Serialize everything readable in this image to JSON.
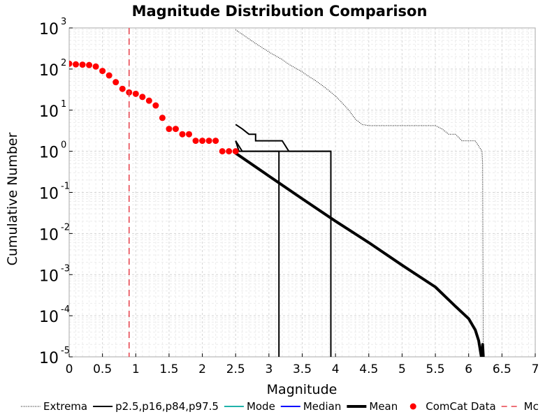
{
  "chart_data": {
    "type": "line",
    "title": "Magnitude Distribution Comparison",
    "xlabel": "Magnitude",
    "ylabel": "Cumulative Number",
    "xlim": [
      0,
      7
    ],
    "ylim_log10": [
      -5,
      3
    ],
    "yscale": "log",
    "grid": true,
    "legend_placement": "bottom",
    "x_ticks": [
      "0",
      "0.5",
      "1",
      "1.5",
      "2",
      "2.5",
      "3",
      "3.5",
      "4",
      "4.5",
      "5",
      "5.5",
      "6",
      "6.5",
      "7"
    ],
    "y_ticks": [
      {
        "base": "10",
        "exp": "3",
        "value": 1000
      },
      {
        "base": "10",
        "exp": "2",
        "value": 100
      },
      {
        "base": "10",
        "exp": "1",
        "value": 10
      },
      {
        "base": "10",
        "exp": "0",
        "value": 1
      },
      {
        "base": "10",
        "exp": "-1",
        "value": 0.1
      },
      {
        "base": "10",
        "exp": "-2",
        "value": 0.01
      },
      {
        "base": "10",
        "exp": "-3",
        "value": 0.001
      },
      {
        "base": "10",
        "exp": "-4",
        "value": 0.0001
      },
      {
        "base": "10",
        "exp": "-5",
        "value": 1e-05
      }
    ],
    "y_ticks_display": {
      "10^-1": "10-1",
      "10^-2": "10-2",
      "10^-3": "10-3",
      "10^-4": "10-4",
      "10^-5": "10-5"
    },
    "series": [
      {
        "name": "Extrema",
        "style": "dotted",
        "color": "#000000",
        "x": [
          2.5,
          2.6,
          2.7,
          2.8,
          2.9,
          3.0,
          3.1,
          3.2,
          3.3,
          3.4,
          3.5,
          3.6,
          3.7,
          3.8,
          3.9,
          4.0,
          4.1,
          4.2,
          4.3,
          4.4,
          4.5,
          4.6,
          4.7,
          4.8,
          4.9,
          5.0,
          5.1,
          5.2,
          5.3,
          5.4,
          5.5,
          5.6,
          5.7,
          5.8,
          5.9,
          6.0,
          6.1,
          6.2,
          6.21,
          6.22
        ],
        "y": [
          900,
          700,
          540,
          420,
          330,
          260,
          210,
          170,
          130,
          105,
          85,
          66,
          52,
          40,
          30,
          22,
          15,
          10,
          6,
          4.5,
          4.2,
          4.2,
          4.2,
          4.2,
          4.2,
          4.2,
          4.2,
          4.2,
          4.2,
          4.2,
          4.2,
          3.5,
          2.6,
          2.6,
          1.8,
          1.8,
          1.8,
          1.0,
          0.5,
          1e-05
        ]
      },
      {
        "name": "p2.5,p16,p84,p97.5",
        "style": "solid",
        "color": "#000000",
        "lines": [
          {
            "x": [
              2.5,
              2.55,
              2.55,
              3.15,
              3.15
            ],
            "y": [
              1.8,
              1.0,
              1.0,
              1.0,
              1e-05
            ]
          },
          {
            "x": [
              2.5,
              2.6,
              2.6,
              2.65,
              2.65,
              3.3,
              3.3,
              3.4,
              3.4,
              3.93,
              3.93
            ],
            "y": [
              1.8,
              1.0,
              1.0,
              1.0,
              1.0,
              1.0,
              1.0,
              1.0,
              1.0,
              1.0,
              1e-05
            ]
          },
          {
            "x": [
              2.5,
              2.6,
              2.7,
              2.7,
              2.8,
              2.8,
              3.2,
              3.2,
              3.3,
              3.3,
              3.93,
              3.93
            ],
            "y": [
              4.5,
              3.5,
              2.6,
              2.6,
              2.6,
              1.8,
              1.8,
              1.8,
              1.0,
              1.0,
              1.0,
              1.0
            ]
          }
        ]
      },
      {
        "name": "Mode",
        "style": "solid",
        "color": "#20b2aa"
      },
      {
        "name": "Median",
        "style": "solid",
        "color": "#0000ff"
      },
      {
        "name": "Mean",
        "style": "solid-thick",
        "color": "#000000",
        "x": [
          2.5,
          3.0,
          3.5,
          4.0,
          4.5,
          5.0,
          5.5,
          5.8,
          6.0,
          6.1,
          6.15,
          6.2,
          6.21,
          6.22
        ],
        "y": [
          0.9,
          0.25,
          0.07,
          0.02,
          0.006,
          0.0017,
          0.0005,
          0.00017,
          8.5e-05,
          4.5e-05,
          2.5e-05,
          8e-06,
          2e-05,
          1e-05
        ]
      },
      {
        "name": "ComCat Data",
        "style": "markers",
        "color": "#ff0000",
        "x": [
          0.0,
          0.1,
          0.2,
          0.3,
          0.4,
          0.5,
          0.6,
          0.7,
          0.8,
          0.9,
          1.0,
          1.1,
          1.2,
          1.3,
          1.4,
          1.5,
          1.6,
          1.7,
          1.8,
          1.9,
          2.0,
          2.1,
          2.2,
          2.3,
          2.4,
          2.5
        ],
        "y": [
          135,
          130,
          128,
          125,
          115,
          90,
          70,
          48,
          33,
          27,
          25,
          21,
          17,
          13,
          6.5,
          3.5,
          3.5,
          2.6,
          2.6,
          1.8,
          1.8,
          1.8,
          1.8,
          1.0,
          1.0,
          1.0
        ]
      },
      {
        "name": "Mc",
        "style": "dashed-vertical",
        "color": "#e8404a",
        "x": 0.9
      }
    ]
  }
}
